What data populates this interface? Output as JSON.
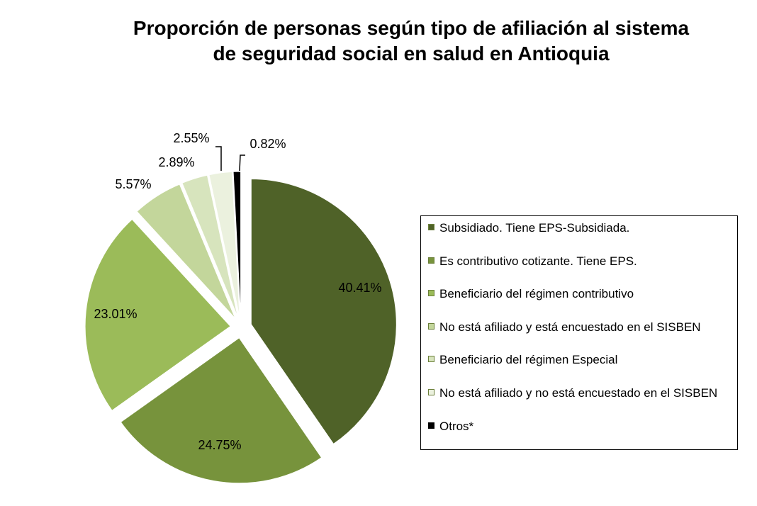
{
  "chart_data": {
    "type": "pie",
    "title_lines": [
      "Proporción de personas según tipo de afiliación al sistema",
      "de seguridad social en salud en Antioquia"
    ],
    "legend_position": "right",
    "slices": [
      {
        "name": "Subsidiado. Tiene EPS-Subsidiada.",
        "value": 40.41,
        "label": "40.41%",
        "color": "#4f6228"
      },
      {
        "name": "Es contributivo cotizante. Tiene EPS.",
        "value": 24.75,
        "label": "24.75%",
        "color": "#77933c"
      },
      {
        "name": "Beneficiario del régimen contributivo",
        "value": 23.01,
        "label": "23.01%",
        "color": "#9bbb59"
      },
      {
        "name": "No está afiliado y está encuestado en el SISBEN",
        "value": 5.57,
        "label": "5.57%",
        "color": "#c3d69b"
      },
      {
        "name": "Beneficiario del régimen Especial",
        "value": 2.89,
        "label": "2.89%",
        "color": "#d7e4bd"
      },
      {
        "name": "No está afiliado y no está encuestado en el SISBEN",
        "value": 2.55,
        "label": "2.55%",
        "color": "#ebf1de"
      },
      {
        "name": "Otros*",
        "value": 0.82,
        "label": "0.82%",
        "color": "#000000"
      }
    ]
  }
}
